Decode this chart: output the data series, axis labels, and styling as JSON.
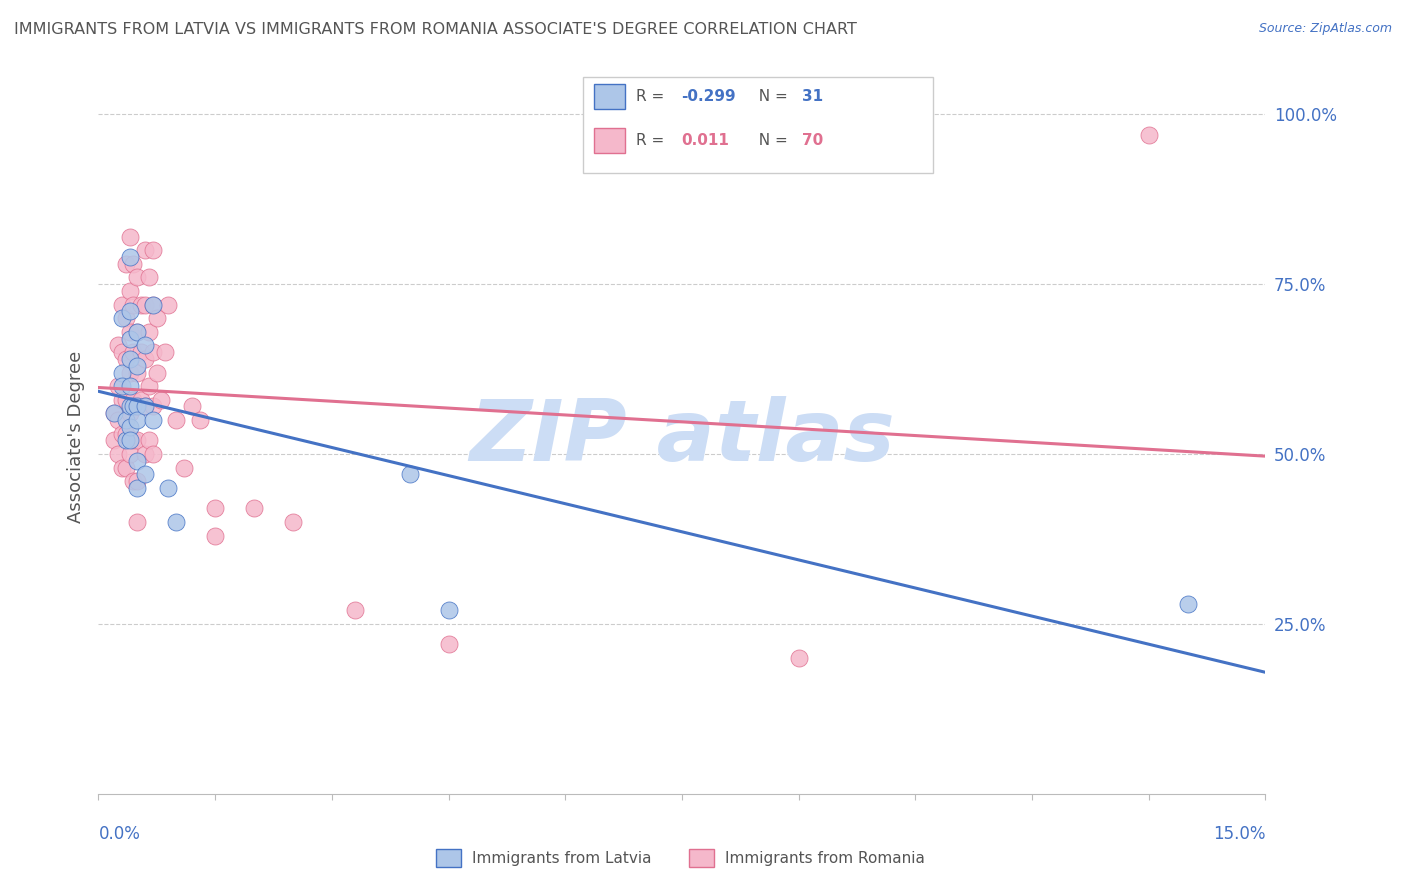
{
  "title": "IMMIGRANTS FROM LATVIA VS IMMIGRANTS FROM ROMANIA ASSOCIATE'S DEGREE CORRELATION CHART",
  "source": "Source: ZipAtlas.com",
  "ylabel": "Associate's Degree",
  "xlim": [
    0.0,
    15.0
  ],
  "ylim": [
    0.0,
    105.0
  ],
  "ytick_values": [
    25,
    50,
    75,
    100
  ],
  "ytick_labels": [
    "25.0%",
    "50.0%",
    "75.0%",
    "100.0%"
  ],
  "legend_R_latvia": "-0.299",
  "legend_N_latvia": "31",
  "legend_R_romania": "0.011",
  "legend_N_romania": "70",
  "latvia_face_color": "#adc6e8",
  "romania_face_color": "#f5b8cb",
  "latvia_edge_color": "#4472c4",
  "romania_edge_color": "#e07090",
  "title_color": "#555555",
  "source_color": "#4472c4",
  "watermark_color": "#ccddf5",
  "grid_color": "#cccccc",
  "axis_label_color": "#4472c4",
  "latvia_points": [
    [
      0.2,
      56
    ],
    [
      0.3,
      70
    ],
    [
      0.3,
      62
    ],
    [
      0.3,
      60
    ],
    [
      0.35,
      55
    ],
    [
      0.35,
      52
    ],
    [
      0.4,
      79
    ],
    [
      0.4,
      71
    ],
    [
      0.4,
      67
    ],
    [
      0.4,
      64
    ],
    [
      0.4,
      60
    ],
    [
      0.4,
      57
    ],
    [
      0.4,
      54
    ],
    [
      0.4,
      52
    ],
    [
      0.45,
      57
    ],
    [
      0.5,
      68
    ],
    [
      0.5,
      63
    ],
    [
      0.5,
      57
    ],
    [
      0.5,
      55
    ],
    [
      0.5,
      49
    ],
    [
      0.5,
      45
    ],
    [
      0.6,
      66
    ],
    [
      0.6,
      57
    ],
    [
      0.6,
      47
    ],
    [
      0.7,
      72
    ],
    [
      0.7,
      55
    ],
    [
      0.9,
      45
    ],
    [
      1.0,
      40
    ],
    [
      4.0,
      47
    ],
    [
      4.5,
      27
    ],
    [
      14.0,
      28
    ]
  ],
  "romania_points": [
    [
      0.2,
      56
    ],
    [
      0.2,
      52
    ],
    [
      0.25,
      66
    ],
    [
      0.25,
      60
    ],
    [
      0.25,
      55
    ],
    [
      0.25,
      50
    ],
    [
      0.3,
      72
    ],
    [
      0.3,
      65
    ],
    [
      0.3,
      58
    ],
    [
      0.3,
      53
    ],
    [
      0.3,
      48
    ],
    [
      0.35,
      78
    ],
    [
      0.35,
      70
    ],
    [
      0.35,
      64
    ],
    [
      0.35,
      58
    ],
    [
      0.35,
      53
    ],
    [
      0.35,
      48
    ],
    [
      0.4,
      82
    ],
    [
      0.4,
      74
    ],
    [
      0.4,
      68
    ],
    [
      0.4,
      62
    ],
    [
      0.4,
      56
    ],
    [
      0.4,
      50
    ],
    [
      0.45,
      78
    ],
    [
      0.45,
      72
    ],
    [
      0.45,
      65
    ],
    [
      0.45,
      58
    ],
    [
      0.45,
      52
    ],
    [
      0.45,
      46
    ],
    [
      0.5,
      76
    ],
    [
      0.5,
      68
    ],
    [
      0.5,
      62
    ],
    [
      0.5,
      57
    ],
    [
      0.5,
      52
    ],
    [
      0.5,
      46
    ],
    [
      0.5,
      40
    ],
    [
      0.55,
      72
    ],
    [
      0.55,
      65
    ],
    [
      0.55,
      58
    ],
    [
      0.6,
      80
    ],
    [
      0.6,
      72
    ],
    [
      0.6,
      64
    ],
    [
      0.6,
      57
    ],
    [
      0.6,
      50
    ],
    [
      0.65,
      76
    ],
    [
      0.65,
      68
    ],
    [
      0.65,
      60
    ],
    [
      0.65,
      52
    ],
    [
      0.7,
      80
    ],
    [
      0.7,
      72
    ],
    [
      0.7,
      65
    ],
    [
      0.7,
      57
    ],
    [
      0.7,
      50
    ],
    [
      0.75,
      70
    ],
    [
      0.75,
      62
    ],
    [
      0.8,
      58
    ],
    [
      0.85,
      65
    ],
    [
      0.9,
      72
    ],
    [
      1.0,
      55
    ],
    [
      1.1,
      48
    ],
    [
      1.2,
      57
    ],
    [
      1.3,
      55
    ],
    [
      1.5,
      42
    ],
    [
      1.5,
      38
    ],
    [
      2.0,
      42
    ],
    [
      2.5,
      40
    ],
    [
      3.3,
      27
    ],
    [
      4.5,
      22
    ],
    [
      9.0,
      20
    ],
    [
      13.5,
      97
    ]
  ]
}
